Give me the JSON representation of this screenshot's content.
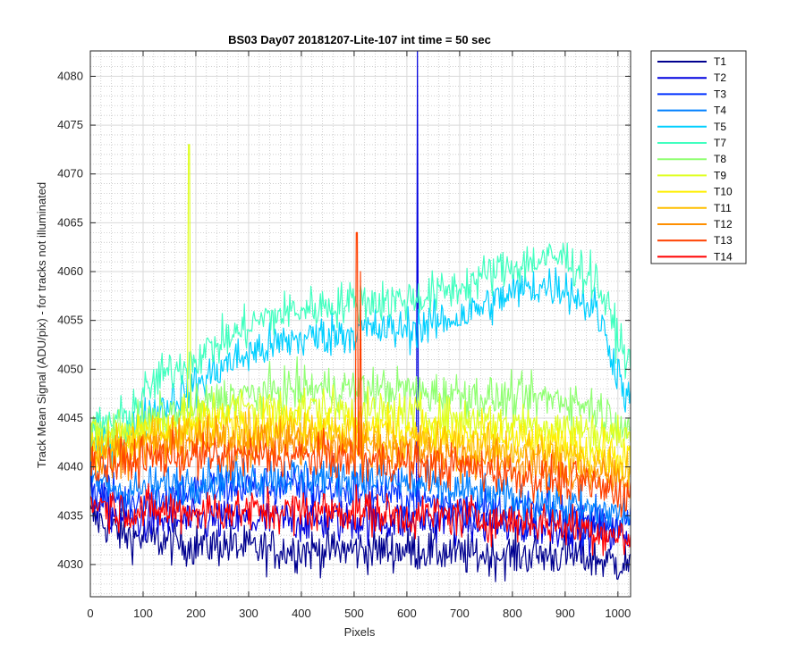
{
  "chart_data": {
    "type": "line",
    "title": "BS03 Day07 20181207-Lite-107 int time = 50 sec",
    "xlabel": "Pixels",
    "ylabel": "Track Mean Signal (ADU/pix) - for tracks not illuminated",
    "xlim": [
      0,
      1024
    ],
    "ylim": [
      4026.7,
      4082.6
    ],
    "xticks": [
      0,
      100,
      200,
      300,
      400,
      500,
      600,
      700,
      800,
      900,
      1000
    ],
    "yticks": [
      4030,
      4035,
      4040,
      4045,
      4050,
      4055,
      4060,
      4065,
      4070,
      4075,
      4080
    ],
    "grid": "on (major and minor)",
    "legend_position": "outside top-right",
    "x_sampled": [
      0,
      64,
      128,
      192,
      256,
      320,
      384,
      448,
      512,
      576,
      640,
      704,
      768,
      832,
      896,
      960,
      1024
    ],
    "series": [
      {
        "name": "T1",
        "color": "#00008F",
        "values": [
          4035,
          4033,
          4032.5,
          4032,
          4032,
          4031.5,
          4031.5,
          4031.5,
          4031.5,
          4031.5,
          4031.5,
          4031,
          4031,
          4031,
          4031,
          4030.5,
          4030
        ]
      },
      {
        "name": "T2",
        "color": "#0000DF",
        "values": [
          4037,
          4034.5,
          4034.5,
          4034.5,
          4034.5,
          4034.5,
          4034.5,
          4034.5,
          4034.5,
          4034.5,
          4034.5,
          4034.5,
          4034,
          4034,
          4034,
          4033.5,
          4033
        ]
      },
      {
        "name": "T3",
        "color": "#0030FF",
        "values": [
          4038,
          4036.5,
          4037,
          4037.5,
          4038,
          4038,
          4038,
          4037.5,
          4037.5,
          4037,
          4036.5,
          4036,
          4035.5,
          4035.5,
          4035,
          4034.5,
          4034
        ]
      },
      {
        "name": "T4",
        "color": "#0080FF",
        "values": [
          4039,
          4037.5,
          4038,
          4038.5,
          4039,
          4039,
          4039,
          4039,
          4039,
          4038.5,
          4038,
          4037.5,
          4037,
          4036.5,
          4036,
          4035.5,
          4035
        ]
      },
      {
        "name": "T5",
        "color": "#00CFFF",
        "values": [
          4042,
          4043,
          4046,
          4048,
          4050.5,
          4052,
          4053,
          4053.5,
          4054,
          4054,
          4054.5,
          4055.5,
          4057,
          4058.5,
          4058.5,
          4056,
          4046
        ]
      },
      {
        "name": "T7",
        "color": "#40FFBF",
        "values": [
          4044,
          4045,
          4049,
          4051,
          4053,
          4055,
          4056,
          4056.5,
          4057,
          4057,
          4057.5,
          4058.5,
          4060,
          4061,
          4061.5,
          4059,
          4050
        ]
      },
      {
        "name": "T8",
        "color": "#8FFF70",
        "values": [
          4043.5,
          4044,
          4045,
          4046,
          4047,
          4047.5,
          4048,
          4048,
          4048,
          4048,
          4047.5,
          4047.5,
          4047,
          4047,
          4047,
          4046,
          4044
        ]
      },
      {
        "name": "T9",
        "color": "#DFFF20",
        "values": [
          4043,
          4043.5,
          4044.5,
          4045,
          4046,
          4046,
          4046,
          4046,
          4045.5,
          4045.5,
          4045,
          4045,
          4044.5,
          4044.5,
          4044,
          4043.5,
          4043
        ]
      },
      {
        "name": "T10",
        "color": "#FFEF00",
        "values": [
          4042,
          4042.5,
          4043.5,
          4044,
          4044.5,
          4044.5,
          4044.5,
          4044.5,
          4044,
          4044,
          4043.5,
          4043,
          4043,
          4042.5,
          4042,
          4041.5,
          4040.5
        ]
      },
      {
        "name": "T11",
        "color": "#FFBF00",
        "values": [
          4041.5,
          4042,
          4043,
          4043.5,
          4043.5,
          4043.5,
          4043.5,
          4043,
          4043,
          4042.5,
          4042.5,
          4042,
          4042,
          4041.5,
          4041,
          4040.5,
          4040
        ]
      },
      {
        "name": "T12",
        "color": "#FF8F00",
        "values": [
          4041,
          4041.5,
          4042,
          4042.5,
          4042.5,
          4042.5,
          4042.5,
          4042,
          4042,
          4041.5,
          4041.5,
          4041,
          4040.5,
          4040,
          4039.5,
          4039,
          4038.5
        ]
      },
      {
        "name": "T13",
        "color": "#FF4000",
        "values": [
          4040,
          4040.5,
          4041,
          4041,
          4041,
          4041,
          4041,
          4041,
          4040.5,
          4040.5,
          4040,
          4040,
          4039.5,
          4039,
          4038.5,
          4038,
          4037
        ]
      },
      {
        "name": "T14",
        "color": "#FF0000",
        "values": [
          4036.5,
          4035.5,
          4035.5,
          4035.5,
          4035.5,
          4035.5,
          4035.5,
          4035.5,
          4035.5,
          4035,
          4035,
          4035,
          4034.5,
          4034.5,
          4034,
          4033.5,
          4032.5
        ]
      }
    ],
    "spikes": [
      {
        "series": "T9",
        "x": 187,
        "peak": 4073
      },
      {
        "series": "T13",
        "x": 505,
        "peak": 4064
      },
      {
        "series": "T13",
        "x": 512,
        "peak": 4060
      },
      {
        "series": "T2",
        "x": 620,
        "peak": 4082.6
      }
    ]
  }
}
